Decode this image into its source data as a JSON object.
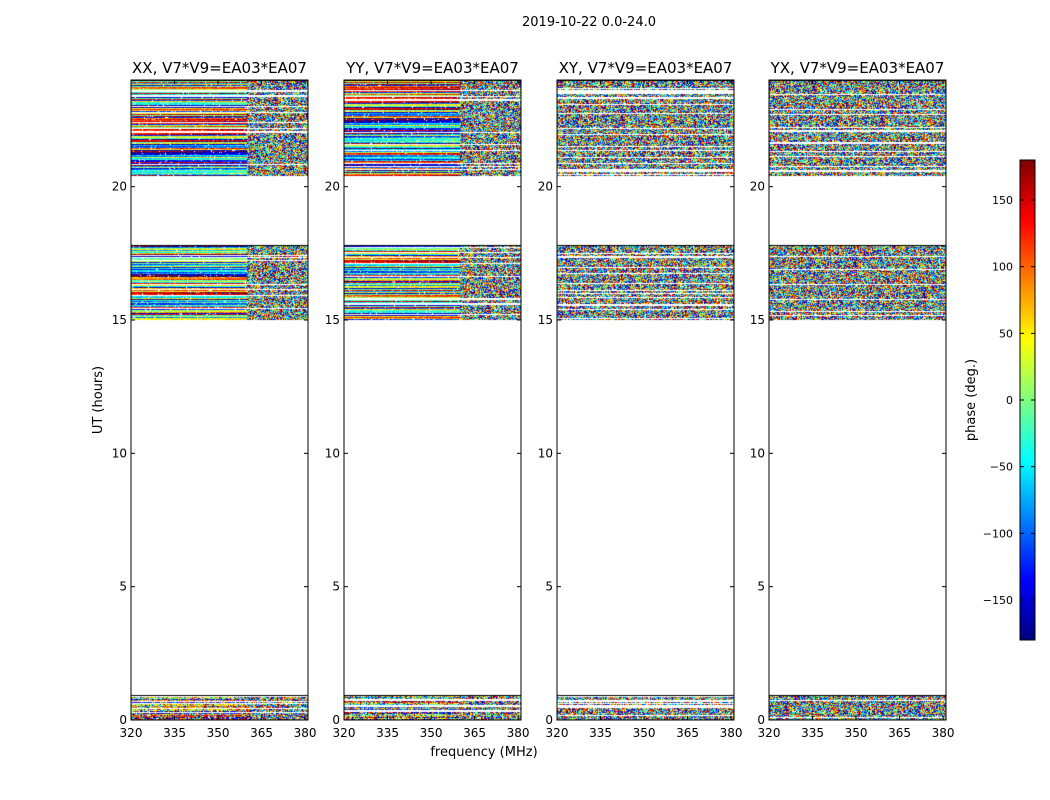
{
  "figure": {
    "suptitle": "2019-10-22 0.0-24.0",
    "xlabel": "frequency (MHz)",
    "ylabel": "UT (hours)"
  },
  "colorbar": {
    "label": "phase (deg.)",
    "range": [
      -180,
      180
    ],
    "ticks": [
      -150,
      -100,
      -50,
      0,
      50,
      100,
      150
    ],
    "tick_labels": [
      "−150",
      "−100",
      "−50",
      "0",
      "50",
      "100",
      "150"
    ],
    "colormap": "jet",
    "colors": [
      "#00007f",
      "#0000ff",
      "#007fff",
      "#00ffff",
      "#7fff7f",
      "#ffff00",
      "#ff7f00",
      "#ff0000",
      "#7f0000"
    ]
  },
  "chart_data": [
    {
      "type": "heatmap",
      "title": "XX, V7*V9=EA03*EA07",
      "xlim": [
        320,
        381
      ],
      "ylim": [
        0,
        24
      ],
      "xticks": [
        320,
        335,
        350,
        365,
        380
      ],
      "yticks": [
        0,
        5,
        10,
        15,
        20
      ],
      "value": "phase (deg.)",
      "bands_hours": [
        [
          0.0,
          0.95
        ],
        [
          15.0,
          17.8
        ],
        [
          20.4,
          24.0
        ]
      ],
      "character": "coherent"
    },
    {
      "type": "heatmap",
      "title": "YY, V7*V9=EA03*EA07",
      "xlim": [
        320,
        381
      ],
      "ylim": [
        0,
        24
      ],
      "xticks": [
        320,
        335,
        350,
        365,
        380
      ],
      "yticks": [
        0,
        5,
        10,
        15,
        20
      ],
      "value": "phase (deg.)",
      "bands_hours": [
        [
          0.0,
          0.95
        ],
        [
          15.0,
          17.8
        ],
        [
          20.4,
          24.0
        ]
      ],
      "character": "coherent"
    },
    {
      "type": "heatmap",
      "title": "XY, V7*V9=EA03*EA07",
      "xlim": [
        320,
        381
      ],
      "ylim": [
        0,
        24
      ],
      "xticks": [
        320,
        335,
        350,
        365,
        380
      ],
      "yticks": [
        0,
        5,
        10,
        15,
        20
      ],
      "value": "phase (deg.)",
      "bands_hours": [
        [
          0.0,
          0.95
        ],
        [
          15.0,
          17.8
        ],
        [
          20.4,
          24.0
        ]
      ],
      "character": "noisy"
    },
    {
      "type": "heatmap",
      "title": "YX, V7*V9=EA03*EA07",
      "xlim": [
        320,
        381
      ],
      "ylim": [
        0,
        24
      ],
      "xticks": [
        320,
        335,
        350,
        365,
        380
      ],
      "yticks": [
        0,
        5,
        10,
        15,
        20
      ],
      "value": "phase (deg.)",
      "bands_hours": [
        [
          0.0,
          0.95
        ],
        [
          15.0,
          17.8
        ],
        [
          20.4,
          24.0
        ]
      ],
      "character": "noisy"
    }
  ]
}
